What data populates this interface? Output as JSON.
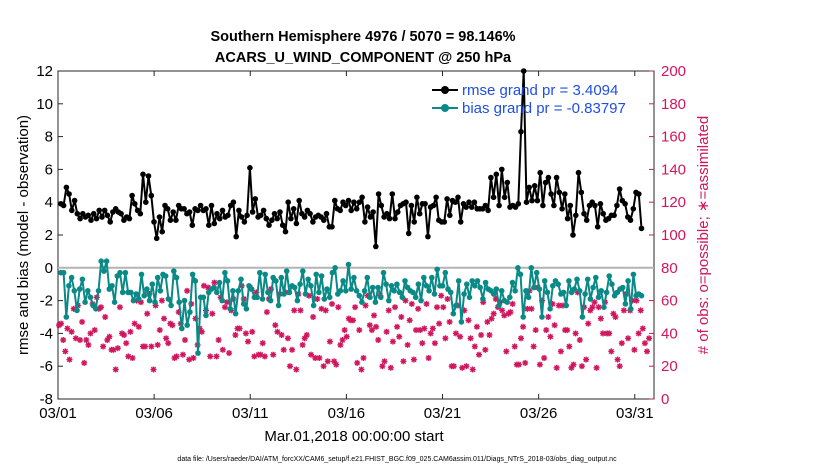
{
  "chart_data": {
    "type": "line",
    "title": "Southern Hemisphere 4976 / 5070 = 98.146%",
    "subtitle": "ACARS_U_WIND_COMPONENT @ 250 hPa",
    "xlabel": "Mar.01,2018 00:00:00 start",
    "ylabel": "rmse and bias (model - observation)",
    "ylabel_right": "# of obs: o=possible; ∗=assimilated",
    "footer": "data file: /Users/raeder/DAI/ATM_forcXX/CAM6_setup/f.e21.FHIST_BGC.f09_025.CAM6assim.011/Diags_NTrS_2018-03/obs_diag_output.nc",
    "x_ticks": [
      "03/01",
      "03/06",
      "03/11",
      "03/16",
      "03/21",
      "03/26",
      "03/31"
    ],
    "x_tick_days": [
      1,
      6,
      11,
      16,
      21,
      26,
      31
    ],
    "xlim_days": [
      1,
      32
    ],
    "ylim": [
      -8,
      12
    ],
    "y_ticks": [
      -8,
      -6,
      -4,
      -2,
      0,
      2,
      4,
      6,
      8,
      10,
      12
    ],
    "ylim_right": [
      0,
      200
    ],
    "y_ticks_right": [
      0,
      20,
      40,
      60,
      80,
      100,
      120,
      140,
      160,
      180,
      200
    ],
    "legend_position": "top-right",
    "colors": {
      "rmse": "#000000",
      "bias": "#0a8a86",
      "obs": "#d0165e",
      "zero_line": "#b4b4b4"
    },
    "series": [
      {
        "name": "rmse grand pr = 3.4094",
        "values": [
          3.9,
          3.8,
          4.9,
          4.5,
          3.5,
          4.1,
          3.3,
          3.0,
          3.3,
          3.1,
          3.2,
          2.9,
          3.3,
          3.0,
          3.5,
          3.1,
          3.5,
          3.2,
          2.8,
          3.4,
          3.6,
          3.4,
          3.3,
          2.9,
          3.1,
          3.0,
          4.4,
          3.9,
          3.5,
          3.3,
          5.7,
          4.0,
          5.6,
          4.4,
          2.8,
          1.8,
          3.1,
          2.2,
          3.8,
          3.6,
          2.9,
          3.4,
          2.9,
          3.8,
          3.6,
          3.6,
          3.3,
          3.4,
          2.6,
          3.6,
          3.5,
          3.8,
          3.5,
          3.6,
          2.6,
          3.8,
          2.7,
          3.3,
          3.0,
          3.5,
          3.1,
          3.2,
          3.8,
          4.0,
          1.9,
          3.5,
          3.1,
          2.8,
          3.2,
          6.1,
          3.4,
          4.2,
          3.1,
          3.2,
          3.5,
          3.0,
          2.6,
          2.9,
          3.3,
          3.0,
          3.4,
          2.6,
          2.2,
          4.0,
          3.0,
          3.6,
          2.7,
          4.1,
          3.3,
          3.1,
          3.5,
          3.3,
          2.8,
          3.1,
          3.2,
          3.1,
          2.9,
          3.3,
          2.5,
          2.5,
          4.1,
          3.6,
          3.5,
          4.0,
          3.8,
          4.1,
          3.5,
          4.0,
          3.6,
          4.0,
          4.3,
          2.8,
          3.7,
          3.1,
          3.4,
          1.3,
          4.5,
          3.8,
          3.1,
          3.3,
          3.0,
          4.5,
          3.0,
          3.4,
          3.8,
          3.9,
          4.0,
          2.1,
          3.8,
          2.8,
          4.3,
          3.3,
          3.9,
          3.9,
          1.9,
          3.7,
          3.8,
          4.3,
          2.9,
          2.8,
          2.8,
          4.2,
          3.2,
          4.1,
          4.0,
          4.3,
          2.8,
          3.9,
          3.7,
          4.0,
          3.7,
          4.0,
          3.6,
          3.6,
          3.6,
          3.8,
          3.5,
          5.5,
          4.3,
          5.7,
          3.8,
          6.0,
          4.3,
          5.2,
          3.7,
          3.8,
          3.7,
          3.9,
          8.3,
          12.0,
          4.0,
          4.9,
          4.1,
          5.0,
          4.1,
          5.8,
          3.8,
          5.2,
          5.5,
          4.5,
          3.8,
          5.5,
          4.6,
          3.6,
          4.5,
          3.0,
          3.8,
          2.0,
          3.2,
          5.8,
          4.6,
          3.3,
          2.9,
          3.8,
          4.0,
          3.8,
          2.5,
          3.9,
          3.3,
          2.9,
          3.0,
          3.2,
          3.2,
          3.8,
          4.8,
          4.1,
          3.9,
          3.1,
          2.9,
          3.6,
          4.6,
          4.5,
          2.4
        ]
      },
      {
        "name": "bias grand pr = -0.83797",
        "values": [
          -0.3,
          -0.3,
          -3.0,
          -1.1,
          -0.6,
          -1.4,
          -2.6,
          -1.3,
          -0.7,
          -2.1,
          -1.4,
          -1.8,
          -2.3,
          -2.5,
          -1.4,
          0.4,
          -0.2,
          0.4,
          -1.3,
          -1.1,
          -2.1,
          -0.5,
          -0.3,
          -1.5,
          -0.3,
          -1.5,
          -1.5,
          -2.0,
          -1.6,
          -1.9,
          -0.4,
          -1.7,
          -1.3,
          -2.0,
          -1.0,
          -2.1,
          -0.6,
          -1.4,
          -0.4,
          -0.5,
          -1.9,
          -2.3,
          -0.2,
          -0.6,
          -2.1,
          -3.7,
          -2.0,
          -3.5,
          -2.7,
          -0.4,
          -0.8,
          -5.2,
          -1.8,
          -1.8,
          -2.9,
          -1.5,
          -1.3,
          -1.2,
          -1.5,
          -0.9,
          -2.0,
          -0.3,
          -0.8,
          -2.5,
          -1.4,
          -2.8,
          -1.4,
          -0.7,
          -2.2,
          -2.5,
          -1.1,
          -1.3,
          -1.8,
          -1.8,
          -0.3,
          -1.9,
          -0.4,
          -1.5,
          -2.0,
          -0.6,
          -0.8,
          -2.3,
          -0.6,
          -1.6,
          -0.2,
          -1.5,
          -1.1,
          -1.2,
          -2.0,
          -1.0,
          -0.2,
          -1.6,
          -0.7,
          -1.1,
          -2.3,
          -0.4,
          -1.5,
          -0.5,
          -1.9,
          -1.3,
          -1.8,
          -0.3,
          0.0,
          -1.6,
          -1.4,
          -0.8,
          -1.4,
          0.2,
          -1.3,
          -0.6,
          -1.4,
          -1.7,
          -2.1,
          -1.4,
          -0.6,
          -1.8,
          -1.2,
          -2.1,
          -1.2,
          -1.8,
          -0.3,
          -1.0,
          -2.0,
          -1.1,
          -1.4,
          -1.0,
          -1.5,
          -1.8,
          -0.8,
          -1.2,
          -1.4,
          -1.5,
          -1.8,
          -1.0,
          -2.0,
          -0.6,
          -1.1,
          -1.4,
          -0.6,
          -1.6,
          -0.1,
          -1.1,
          -1.1,
          -0.3,
          -1.3,
          -1.5,
          -2.8,
          -2.3,
          -0.8,
          -3.3,
          -1.6,
          -1.0,
          -1.8,
          -0.8,
          -1.1,
          -0.8,
          -1.2,
          -1.9,
          -0.9,
          -1.3,
          -1.4,
          -1.6,
          -1.3,
          -2.3,
          -1.4,
          -2.0,
          -2.1,
          -1.8,
          -0.9,
          -1.4,
          0.0,
          -0.4,
          -3.0,
          -1.4,
          -1.8,
          0.0,
          -1.2,
          -0.3,
          -1.3,
          -3.0,
          -0.8,
          -1.5,
          -2.5,
          -1.1,
          -0.8,
          -1.0,
          -1.6,
          -1.5,
          -2.3,
          -0.8,
          -1.5,
          -1.3,
          -0.7,
          -1.4,
          -3.0,
          -1.6,
          -0.7,
          -1.9,
          -1.2,
          -0.6,
          -1.8,
          -1.4,
          -2.4,
          -1.5,
          -0.5,
          -1.0,
          -1.7,
          -1.5,
          -1.3,
          -1.2,
          -2.2,
          -0.8,
          -2.5,
          -0.4,
          -1.7,
          -1.6,
          -1.7
        ]
      }
    ],
    "obs_count_values": [
      45,
      46,
      36,
      29,
      43,
      24,
      41,
      55,
      37,
      57,
      36,
      47,
      22,
      36,
      33,
      40,
      58,
      42,
      62,
      55,
      56,
      32,
      50,
      36,
      38,
      30,
      30,
      18,
      31,
      56,
      40,
      39,
      34,
      26,
      41,
      25,
      46,
      60,
      44,
      59,
      32,
      32,
      52,
      64,
      32,
      18,
      57,
      33,
      42,
      60,
      49,
      37,
      34,
      46,
      45,
      25,
      26,
      53,
      46,
      27,
      36,
      66,
      24,
      58,
      25,
      49,
      33,
      43,
      41,
      69,
      54,
      68,
      26,
      52,
      71,
      26,
      36,
      62,
      30,
      56,
      59,
      28,
      54,
      61,
      39,
      43,
      43,
      69,
      61,
      40,
      35,
      68,
      41,
      26,
      65,
      27,
      27,
      34,
      26,
      53,
      61,
      67,
      27,
      45,
      41,
      64,
      39,
      30,
      65,
      37,
      20,
      30,
      54,
      18,
      64,
      54,
      33,
      37,
      39,
      63,
      27,
      50,
      25,
      61,
      25,
      55,
      20,
      54,
      23,
      35,
      58,
      23,
      21,
      56,
      33,
      36,
      42,
      38,
      49,
      48,
      48,
      56,
      22,
      42,
      18,
      25,
      57,
      63,
      45,
      42,
      51,
      44,
      36,
      63,
      20,
      23,
      41,
      54,
      19,
      35,
      56,
      44,
      38,
      50,
      23,
      60,
      33,
      48,
      58,
      24,
      42,
      55,
      42,
      34,
      43,
      58,
      25,
      40,
      43,
      34,
      56,
      46,
      63,
      56,
      37,
      61,
      47,
      20,
      20,
      40,
      57,
      38,
      19,
      54,
      20,
      48,
      37,
      18,
      32,
      44,
      27,
      39,
      59,
      30,
      47,
      39,
      49,
      52,
      61,
      56,
      59,
      54,
      51,
      29,
      52,
      53,
      58,
      32,
      21,
      21,
      37,
      44,
      22,
      55,
      66,
      55,
      32,
      42,
      68,
      21,
      60,
      25,
      42,
      50,
      38,
      58,
      45,
      19,
      57,
      29,
      57,
      42,
      42,
      32,
      19,
      21,
      40,
      65,
      36,
      20,
      56,
      24,
      46,
      54,
      56,
      59,
      19,
      56,
      49,
      40,
      59,
      40,
      40,
      29,
      52,
      50,
      24,
      20,
      34,
      54,
      64,
      37,
      54,
      60,
      30,
      60,
      40,
      54,
      43,
      34,
      29,
      37
    ]
  }
}
